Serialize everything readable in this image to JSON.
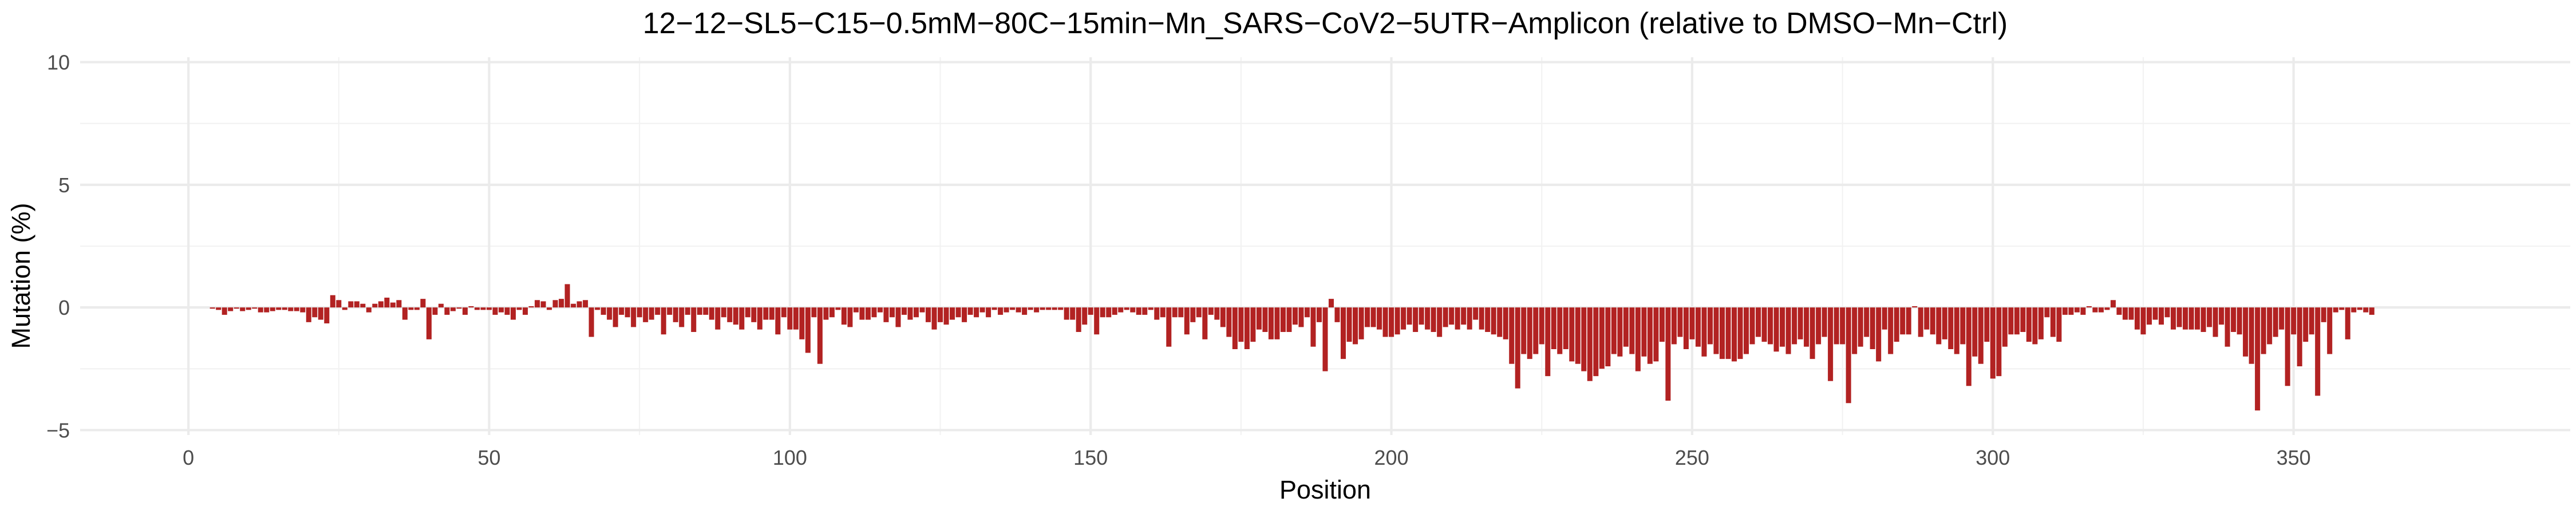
{
  "chart_data": {
    "type": "bar",
    "title": "12−12−SL5−C15−0.5mM−80C−15min−Mn_SARS−CoV2−5UTR−Amplicon (relative to DMSO−Mn−Ctrl)",
    "xlabel": "Position",
    "ylabel": "Mutation (%)",
    "xlim": [
      -18,
      396
    ],
    "ylim": [
      -5.2,
      10.2
    ],
    "x_ticks": [
      0,
      50,
      100,
      150,
      200,
      250,
      300,
      350
    ],
    "y_ticks": [
      -5,
      0,
      5,
      10
    ],
    "y_tick_labels": [
      "−5",
      "0",
      "5",
      "10"
    ],
    "grid": true,
    "legend": "none",
    "bar_color": "#b22222",
    "x_start": 4,
    "values": [
      -0.05,
      -0.1,
      -0.3,
      -0.15,
      -0.05,
      -0.15,
      -0.1,
      -0.05,
      -0.2,
      -0.2,
      -0.15,
      -0.1,
      -0.1,
      -0.15,
      -0.15,
      -0.2,
      -0.6,
      -0.4,
      -0.5,
      -0.65,
      0.5,
      0.3,
      -0.1,
      0.25,
      0.25,
      0.15,
      -0.2,
      0.15,
      0.25,
      0.4,
      0.2,
      0.3,
      -0.5,
      -0.1,
      -0.1,
      0.35,
      -1.3,
      -0.3,
      0.15,
      -0.3,
      -0.15,
      -0.05,
      -0.3,
      0.05,
      -0.1,
      -0.1,
      -0.1,
      -0.3,
      -0.2,
      -0.3,
      -0.5,
      -0.1,
      -0.3,
      0.05,
      0.3,
      0.25,
      -0.1,
      0.3,
      0.35,
      0.95,
      0.15,
      0.25,
      0.3,
      -1.2,
      -0.1,
      -0.3,
      -0.5,
      -0.8,
      -0.3,
      -0.4,
      -0.8,
      -0.4,
      -0.6,
      -0.5,
      -0.3,
      -1.1,
      -0.3,
      -0.6,
      -0.8,
      -0.3,
      -1.0,
      -0.3,
      -0.3,
      -0.5,
      -0.9,
      -0.4,
      -0.6,
      -0.7,
      -0.9,
      -0.4,
      -0.6,
      -0.9,
      -0.5,
      -0.5,
      -1.1,
      -0.4,
      -0.9,
      -0.9,
      -1.3,
      -1.85,
      -0.4,
      -2.3,
      -0.5,
      -0.4,
      -0.1,
      -0.7,
      -0.8,
      -0.2,
      -0.5,
      -0.5,
      -0.4,
      -0.2,
      -0.6,
      -0.4,
      -0.8,
      -0.3,
      -0.5,
      -0.4,
      -0.2,
      -0.6,
      -0.9,
      -0.6,
      -0.7,
      -0.5,
      -0.4,
      -0.6,
      -0.3,
      -0.4,
      -0.2,
      -0.4,
      -0.1,
      -0.3,
      -0.2,
      -0.1,
      -0.2,
      -0.3,
      -0.1,
      -0.2,
      -0.1,
      -0.1,
      -0.1,
      -0.1,
      -0.5,
      -0.5,
      -1.0,
      -0.7,
      -0.3,
      -1.1,
      -0.4,
      -0.4,
      -0.3,
      -0.2,
      -0.1,
      -0.2,
      -0.3,
      -0.3,
      -0.1,
      -0.5,
      -0.4,
      -1.6,
      -0.4,
      -0.4,
      -1.1,
      -0.6,
      -0.4,
      -1.3,
      -0.3,
      -0.5,
      -0.8,
      -1.2,
      -1.7,
      -1.4,
      -1.7,
      -1.4,
      -0.9,
      -1.0,
      -1.3,
      -1.3,
      -1.0,
      -1.0,
      -0.7,
      -0.8,
      -0.4,
      -1.6,
      -0.6,
      -2.6,
      0.35,
      -0.6,
      -2.1,
      -1.4,
      -1.5,
      -1.3,
      -0.8,
      -0.8,
      -0.9,
      -1.2,
      -1.2,
      -1.1,
      -0.9,
      -0.7,
      -1.0,
      -0.7,
      -0.9,
      -1.0,
      -1.2,
      -0.8,
      -0.7,
      -0.9,
      -0.7,
      -0.9,
      -0.5,
      -0.9,
      -1.0,
      -1.1,
      -1.2,
      -1.3,
      -2.3,
      -3.3,
      -1.9,
      -2.1,
      -1.9,
      -1.5,
      -2.8,
      -1.7,
      -1.9,
      -1.7,
      -2.2,
      -2.3,
      -2.6,
      -3.0,
      -2.8,
      -2.5,
      -2.4,
      -1.9,
      -2.0,
      -1.6,
      -1.9,
      -2.6,
      -2.0,
      -2.3,
      -2.2,
      -1.4,
      -3.8,
      -1.5,
      -1.2,
      -1.7,
      -1.3,
      -1.6,
      -2.0,
      -1.5,
      -1.9,
      -2.1,
      -2.1,
      -2.2,
      -2.1,
      -1.9,
      -1.5,
      -1.2,
      -1.4,
      -1.5,
      -1.8,
      -1.6,
      -1.9,
      -1.5,
      -1.3,
      -1.6,
      -2.1,
      -1.5,
      -1.2,
      -3.0,
      -1.5,
      -1.5,
      -3.9,
      -1.9,
      -1.6,
      -1.2,
      -1.7,
      -2.2,
      -0.9,
      -1.9,
      -1.4,
      -1.1,
      -1.1,
      0.05,
      -1.2,
      -0.9,
      -1.1,
      -1.5,
      -1.3,
      -1.7,
      -1.9,
      -1.5,
      -3.2,
      -2.0,
      -2.3,
      -1.4,
      -2.9,
      -2.8,
      -1.6,
      -1.1,
      -1.1,
      -1.0,
      -1.4,
      -1.5,
      -1.3,
      -0.4,
      -1.2,
      -1.4,
      -0.3,
      -0.3,
      -0.2,
      -0.3,
      0.05,
      -0.2,
      -0.2,
      -0.1,
      0.3,
      -0.3,
      -0.5,
      -0.5,
      -0.9,
      -1.1,
      -0.7,
      -0.5,
      -0.7,
      -0.4,
      -0.9,
      -0.8,
      -0.9,
      -0.9,
      -0.9,
      -1.0,
      -0.8,
      -1.2,
      -0.7,
      -1.6,
      -1.0,
      -1.1,
      -2.0,
      -2.3,
      -4.2,
      -1.9,
      -1.5,
      -1.2,
      -0.9,
      -3.2,
      -1.1,
      -2.4,
      -1.4,
      -1.1,
      -3.6,
      -0.6,
      -1.9,
      -0.2,
      -0.1,
      -1.3,
      -0.2,
      -0.1,
      -0.2,
      -0.3
    ]
  }
}
